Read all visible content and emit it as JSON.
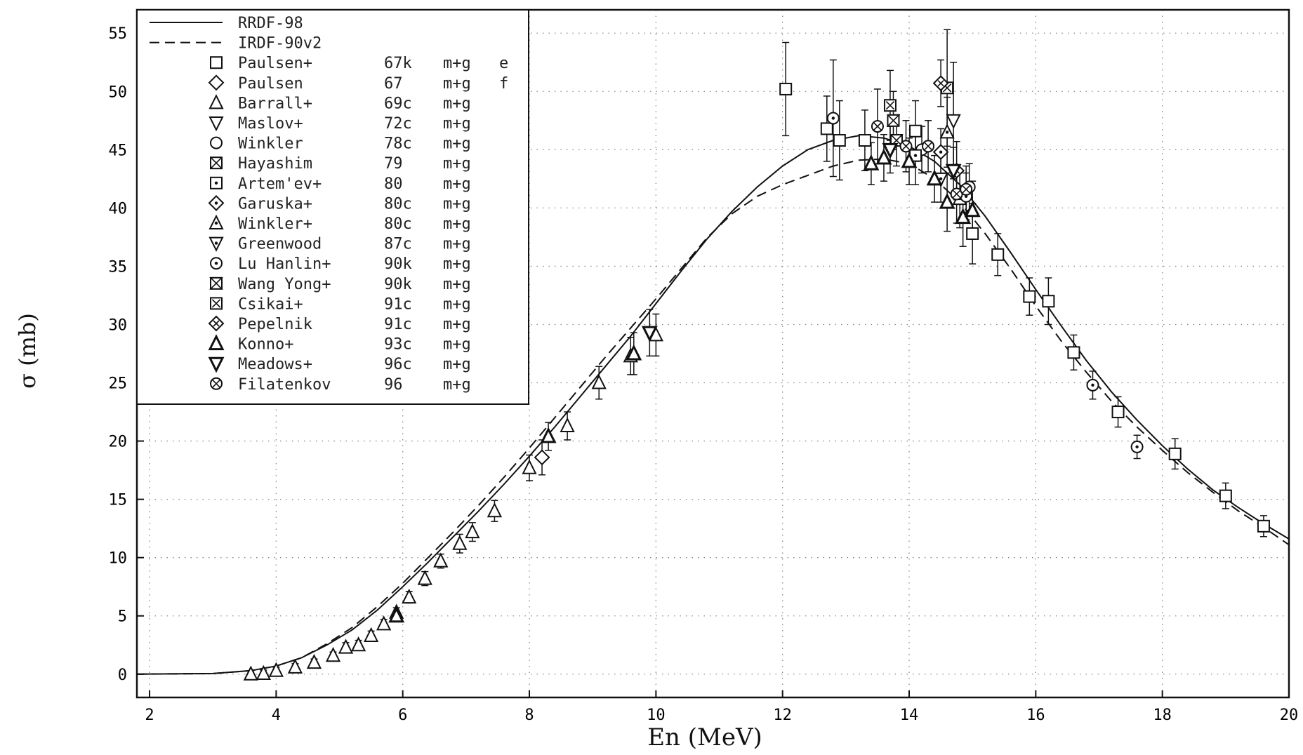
{
  "chart_data": {
    "type": "scatter",
    "xlabel": "En (MeV)",
    "ylabel": "σ (mb)",
    "xlim": [
      1.8,
      20.0
    ],
    "ylim": [
      -2.0,
      57.0
    ],
    "xticks": [
      2,
      4,
      6,
      8,
      10,
      12,
      14,
      16,
      18,
      20
    ],
    "yticks": [
      0,
      5,
      10,
      15,
      20,
      25,
      30,
      35,
      40,
      45,
      50,
      55
    ],
    "grid": "dotted",
    "legend_position": "top-left",
    "curves": [
      {
        "name": "RRDF-98",
        "style": "solid",
        "x": [
          1.8,
          3.0,
          3.6,
          4.0,
          4.4,
          4.8,
          5.2,
          5.6,
          6.0,
          6.4,
          6.8,
          7.2,
          7.6,
          8.0,
          8.4,
          8.8,
          9.2,
          9.6,
          10.0,
          10.4,
          10.8,
          11.2,
          11.6,
          12.0,
          12.4,
          12.8,
          13.2,
          13.6,
          14.0,
          14.4,
          14.8,
          15.2,
          15.6,
          16.0,
          16.4,
          16.8,
          17.2,
          17.6,
          18.0,
          18.4,
          18.8,
          19.2,
          19.6,
          20.0
        ],
        "y": [
          0.0,
          0.05,
          0.3,
          0.7,
          1.4,
          2.5,
          3.8,
          5.5,
          7.5,
          9.6,
          11.8,
          14.0,
          16.3,
          18.7,
          21.2,
          23.8,
          26.4,
          29.0,
          31.8,
          34.6,
          37.3,
          39.7,
          41.8,
          43.6,
          45.0,
          45.8,
          46.2,
          46.0,
          45.3,
          44.0,
          42.0,
          39.3,
          36.2,
          33.0,
          29.9,
          26.9,
          24.2,
          21.8,
          19.6,
          17.6,
          15.8,
          14.3,
          12.9,
          11.6
        ]
      },
      {
        "name": "IRDF-90v2",
        "style": "dashed",
        "x": [
          1.8,
          3.0,
          3.6,
          4.0,
          4.4,
          4.8,
          5.2,
          5.6,
          6.0,
          6.4,
          6.8,
          7.2,
          7.6,
          8.0,
          8.4,
          8.8,
          9.2,
          9.6,
          10.0,
          10.4,
          10.8,
          11.2,
          11.6,
          12.0,
          12.4,
          12.8,
          13.2,
          13.6,
          14.0,
          14.4,
          14.8,
          15.2,
          15.6,
          16.0,
          16.4,
          16.8,
          17.2,
          17.6,
          18.0,
          18.4,
          18.8,
          19.2,
          19.6,
          20.0
        ],
        "y": [
          0.0,
          0.05,
          0.3,
          0.7,
          1.4,
          2.6,
          4.0,
          5.8,
          7.8,
          10.0,
          12.2,
          14.5,
          16.9,
          19.4,
          22.0,
          24.6,
          27.2,
          29.7,
          32.2,
          34.8,
          37.4,
          39.5,
          41.0,
          42.0,
          42.8,
          43.6,
          44.1,
          44.2,
          43.8,
          42.5,
          40.5,
          37.8,
          34.8,
          31.6,
          28.6,
          25.9,
          23.4,
          21.2,
          19.2,
          17.3,
          15.6,
          14.0,
          12.6,
          11.1
        ]
      }
    ],
    "series": [
      {
        "name": "Paulsen+",
        "year": "67k",
        "reaction": "m+g",
        "note": "e",
        "marker": "square",
        "points": [
          [
            12.05,
            50.2,
            4.0
          ],
          [
            12.7,
            46.8,
            2.8
          ],
          [
            12.9,
            45.8,
            3.4
          ],
          [
            13.3,
            45.8,
            2.6
          ],
          [
            14.1,
            46.6,
            2.6
          ],
          [
            15.0,
            37.8,
            2.6
          ],
          [
            15.4,
            36.0,
            1.8
          ],
          [
            15.9,
            32.4,
            1.6
          ],
          [
            16.2,
            32.0,
            2.0
          ],
          [
            16.6,
            27.6,
            1.5
          ],
          [
            17.3,
            22.5,
            1.3
          ],
          [
            18.2,
            18.9,
            1.3
          ],
          [
            19.0,
            15.3,
            1.1
          ],
          [
            19.6,
            12.7,
            0.9
          ]
        ]
      },
      {
        "name": "Paulsen",
        "year": "67",
        "reaction": "m+g",
        "note": "f",
        "marker": "diamond",
        "points": [
          [
            8.2,
            18.6,
            1.5
          ]
        ]
      },
      {
        "name": "Barrall+",
        "year": "69c",
        "reaction": "m+g",
        "note": "",
        "marker": "triangle-up",
        "points": [
          [
            3.6,
            0.0,
            0.3
          ],
          [
            3.8,
            0.05,
            0.3
          ],
          [
            4.0,
            0.3,
            0.3
          ],
          [
            4.3,
            0.6,
            0.3
          ],
          [
            4.6,
            1.0,
            0.3
          ],
          [
            4.9,
            1.6,
            0.3
          ],
          [
            5.1,
            2.3,
            0.4
          ],
          [
            5.3,
            2.5,
            0.4
          ],
          [
            5.5,
            3.3,
            0.4
          ],
          [
            5.7,
            4.3,
            0.4
          ],
          [
            5.9,
            5.3,
            0.4
          ],
          [
            6.1,
            6.6,
            0.5
          ],
          [
            6.35,
            8.2,
            0.6
          ],
          [
            6.6,
            9.7,
            0.6
          ],
          [
            6.9,
            11.2,
            0.8
          ],
          [
            7.1,
            12.2,
            0.8
          ],
          [
            7.45,
            14.0,
            0.9
          ],
          [
            8.0,
            17.7,
            1.1
          ],
          [
            8.6,
            21.3,
            1.2
          ],
          [
            9.1,
            25.0,
            1.4
          ],
          [
            9.6,
            27.3,
            1.6
          ],
          [
            10.0,
            29.1,
            1.8
          ]
        ]
      },
      {
        "name": "Maslov+",
        "year": "72c",
        "reaction": "m+g",
        "note": "",
        "marker": "triangle-down",
        "points": [
          [
            14.7,
            47.5,
            5.0
          ]
        ]
      },
      {
        "name": "Winkler",
        "year": "78c",
        "reaction": "m+g",
        "note": "",
        "marker": "circle",
        "points": [
          [
            14.2,
            45.0,
            2.0
          ],
          [
            14.95,
            41.8,
            2.0
          ]
        ]
      },
      {
        "name": "Hayashim",
        "year": "79",
        "reaction": "m+g",
        "note": "",
        "marker": "square-x",
        "points": [
          [
            13.75,
            47.5,
            2.5
          ]
        ]
      },
      {
        "name": "Artem'ev+",
        "year": "80",
        "reaction": "m+g",
        "note": "",
        "marker": "square-dot",
        "points": [
          [
            14.1,
            44.5,
            2.5
          ]
        ]
      },
      {
        "name": "Garuska+",
        "year": "80c",
        "reaction": "m+g",
        "note": "",
        "marker": "diamond-dot",
        "points": [
          [
            14.5,
            44.8,
            2.0
          ]
        ]
      },
      {
        "name": "Winkler+",
        "year": "80c",
        "reaction": "m+g",
        "note": "",
        "marker": "triangle-up-dot",
        "points": [
          [
            14.6,
            46.5,
            3.0
          ],
          [
            14.8,
            40.8,
            2.5
          ]
        ]
      },
      {
        "name": "Greenwood",
        "year": "87c",
        "reaction": "m+g",
        "note": "",
        "marker": "triangle-down-dot",
        "points": [
          [
            14.5,
            42.5,
            2.0
          ]
        ]
      },
      {
        "name": "Lu Hanlin+",
        "year": "90k",
        "reaction": "m+g",
        "note": "",
        "marker": "circle-dot",
        "points": [
          [
            12.8,
            47.7,
            5.0
          ],
          [
            14.9,
            41.0,
            2.0
          ],
          [
            16.9,
            24.8,
            1.2
          ],
          [
            17.6,
            19.5,
            1.0
          ]
        ]
      },
      {
        "name": "Wang Yong+",
        "year": "90k",
        "reaction": "m+g",
        "note": "",
        "marker": "hourglass",
        "points": [
          [
            13.8,
            45.8,
            2.2
          ]
        ]
      },
      {
        "name": "Csikai+",
        "year": "91c",
        "reaction": "m+g",
        "note": "",
        "marker": "square-cross",
        "points": [
          [
            13.7,
            48.8,
            3.0
          ],
          [
            14.6,
            50.3,
            5.0
          ]
        ]
      },
      {
        "name": "Pepelnik",
        "year": "91c",
        "reaction": "m+g",
        "note": "",
        "marker": "diamond-cross",
        "points": [
          [
            14.5,
            50.7,
            2.0
          ],
          [
            14.75,
            43.2,
            2.5
          ]
        ]
      },
      {
        "name": "Konno+",
        "year": "93c",
        "reaction": "m+g",
        "note": "",
        "marker": "triangle-up-bold",
        "points": [
          [
            5.9,
            5.0,
            0.4
          ],
          [
            8.3,
            20.4,
            1.2
          ],
          [
            9.65,
            27.5,
            1.8
          ],
          [
            13.4,
            43.8,
            1.8
          ],
          [
            13.6,
            44.3,
            2.0
          ],
          [
            14.0,
            44.0,
            2.0
          ],
          [
            14.4,
            42.5,
            2.0
          ],
          [
            14.6,
            40.5,
            2.5
          ],
          [
            14.85,
            39.2,
            2.5
          ],
          [
            15.0,
            39.8,
            2.5
          ]
        ]
      },
      {
        "name": "Meadows+",
        "year": "96c",
        "reaction": "m+g",
        "note": "",
        "marker": "triangle-down-bold",
        "points": [
          [
            9.9,
            29.3,
            2.0
          ],
          [
            13.7,
            45.0,
            2.0
          ],
          [
            14.7,
            43.2,
            2.0
          ]
        ]
      },
      {
        "name": "Filatenkov",
        "year": "96",
        "reaction": "m+g",
        "note": "",
        "marker": "circle-cross",
        "points": [
          [
            13.5,
            47.0,
            3.2
          ],
          [
            13.95,
            45.3,
            2.2
          ],
          [
            14.3,
            45.3,
            2.2
          ],
          [
            14.75,
            41.2,
            2.5
          ],
          [
            14.9,
            41.6,
            2.0
          ]
        ]
      }
    ]
  }
}
